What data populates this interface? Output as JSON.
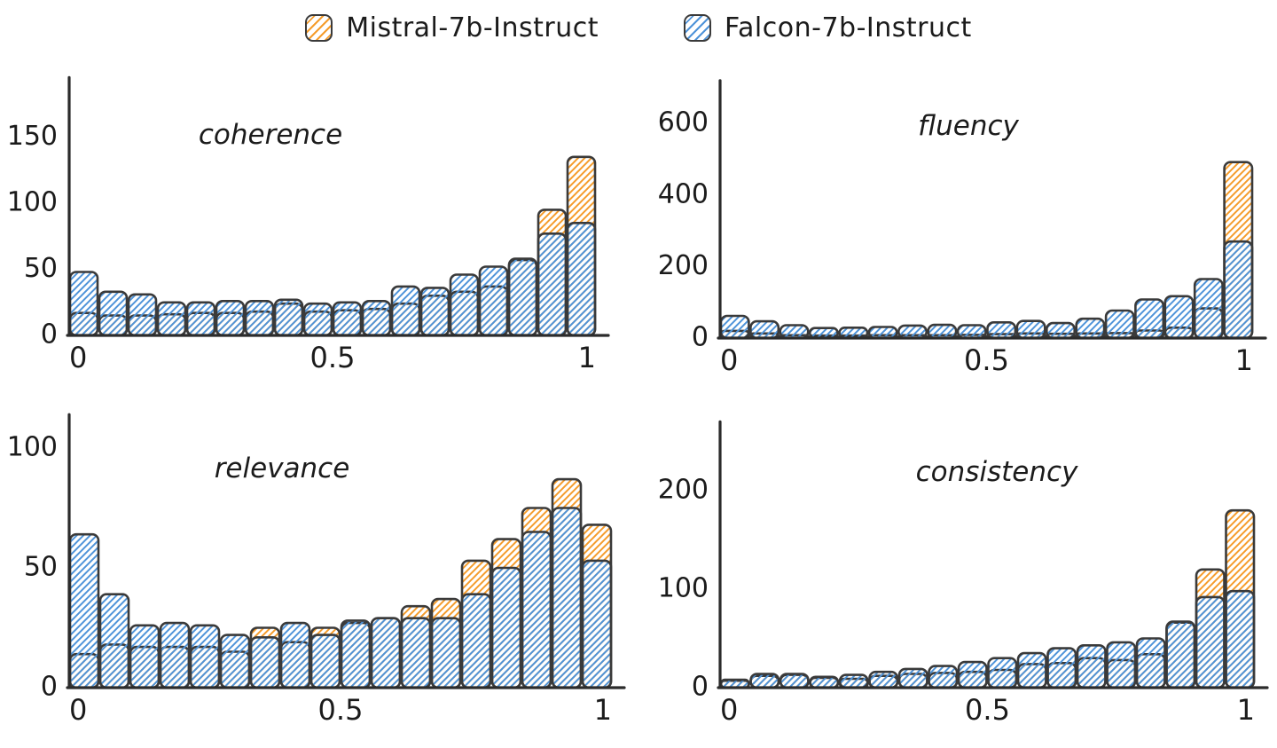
{
  "legend": {
    "items": [
      {
        "label": "Mistral-7b-Instruct",
        "color": "#F59C2B"
      },
      {
        "label": "Falcon-7b-Instruct",
        "color": "#4E93D9"
      }
    ]
  },
  "style": {
    "axis_color": "#2b2b2b",
    "bar_outline_color": "#3a3a3a",
    "text_color": "#1b1b1b",
    "background": "#ffffff",
    "hatch_direction": "forward-slash",
    "legend_position": "top-center"
  },
  "chart_data": [
    {
      "type": "bar",
      "subtype": "overlaid-histogram",
      "title": "coherence",
      "x_range": [
        0,
        1
      ],
      "bins": 18,
      "xlabel": "",
      "ylabel": "",
      "xticks": [
        0,
        0.5,
        1
      ],
      "xtick_labels": [
        "0",
        "0.5",
        "1"
      ],
      "yticks": [
        0,
        50,
        100,
        150
      ],
      "ylim": [
        0,
        195
      ],
      "grid": false,
      "series": [
        {
          "name": "Mistral-7b-Instruct",
          "color": "#F59C2B",
          "values": [
            17,
            15,
            15,
            16,
            17,
            17,
            18,
            24,
            18,
            19,
            20,
            24,
            30,
            33,
            37,
            57,
            95,
            135
          ]
        },
        {
          "name": "Falcon-7b-Instruct",
          "color": "#4E93D9",
          "values": [
            48,
            33,
            31,
            25,
            25,
            26,
            26,
            27,
            24,
            25,
            26,
            37,
            36,
            46,
            52,
            58,
            77,
            85
          ]
        }
      ]
    },
    {
      "type": "bar",
      "subtype": "overlaid-histogram",
      "title": "fluency",
      "x_range": [
        0,
        1
      ],
      "bins": 18,
      "xlabel": "",
      "ylabel": "",
      "xticks": [
        0,
        0.5,
        1
      ],
      "xtick_labels": [
        "0",
        "0.5",
        "1"
      ],
      "yticks": [
        0,
        200,
        400,
        600
      ],
      "ylim": [
        0,
        720
      ],
      "grid": false,
      "series": [
        {
          "name": "Mistral-7b-Instruct",
          "color": "#F59C2B",
          "values": [
            20,
            13,
            8,
            7,
            7,
            8,
            8,
            8,
            9,
            11,
            13,
            12,
            13,
            14,
            21,
            29,
            83,
            492
          ]
        },
        {
          "name": "Falcon-7b-Instruct",
          "color": "#4E93D9",
          "values": [
            62,
            47,
            36,
            28,
            29,
            31,
            35,
            37,
            36,
            44,
            48,
            42,
            54,
            77,
            108,
            117,
            165,
            270
          ]
        }
      ]
    },
    {
      "type": "bar",
      "subtype": "overlaid-histogram",
      "title": "relevance",
      "x_range": [
        0,
        1
      ],
      "bins": 18,
      "xlabel": "",
      "ylabel": "",
      "xticks": [
        0,
        0.5,
        1
      ],
      "xtick_labels": [
        "0",
        "0.5",
        "1"
      ],
      "yticks": [
        0,
        50,
        100
      ],
      "ylim": [
        0,
        114
      ],
      "grid": false,
      "series": [
        {
          "name": "Mistral-7b-Instruct",
          "color": "#F59C2B",
          "values": [
            14,
            18,
            17,
            17,
            17,
            15,
            25,
            19,
            25,
            27,
            29,
            34,
            37,
            53,
            62,
            75,
            87,
            68
          ]
        },
        {
          "name": "Falcon-7b-Instruct",
          "color": "#4E93D9",
          "values": [
            64,
            39,
            26,
            27,
            26,
            22,
            21,
            27,
            22,
            28,
            29,
            29,
            29,
            39,
            50,
            65,
            75,
            53
          ]
        }
      ]
    },
    {
      "type": "bar",
      "subtype": "overlaid-histogram",
      "title": "consistency",
      "x_range": [
        0,
        1
      ],
      "bins": 18,
      "xlabel": "",
      "ylabel": "",
      "xticks": [
        0,
        0.5,
        1
      ],
      "xtick_labels": [
        "0",
        "0.5",
        "1"
      ],
      "yticks": [
        0,
        100,
        200
      ],
      "ylim": [
        0,
        270
      ],
      "grid": false,
      "series": [
        {
          "name": "Mistral-7b-Instruct",
          "color": "#F59C2B",
          "values": [
            7,
            12,
            13,
            10,
            9,
            12,
            14,
            15,
            16,
            18,
            24,
            25,
            30,
            28,
            34,
            66,
            120,
            180
          ]
        },
        {
          "name": "Falcon-7b-Instruct",
          "color": "#4E93D9",
          "values": [
            8,
            14,
            14,
            11,
            13,
            16,
            19,
            22,
            26,
            30,
            35,
            40,
            43,
            46,
            50,
            67,
            92,
            98
          ]
        }
      ]
    }
  ]
}
